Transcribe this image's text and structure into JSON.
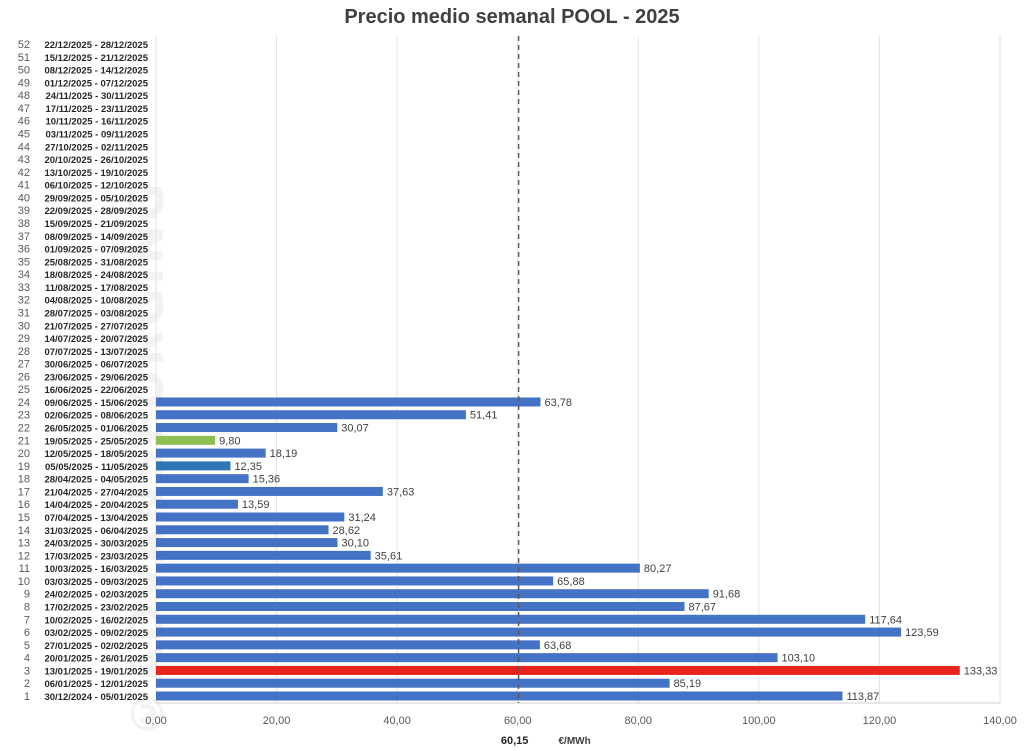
{
  "chart_data": {
    "type": "bar",
    "orientation": "horizontal",
    "title": "Precio medio semanal POOL - 2025",
    "unit_label": "€/MWh",
    "xlim": [
      0,
      140
    ],
    "x_ticks": [
      "0,00",
      "20,00",
      "40,00",
      "60,00",
      "80,00",
      "100,00",
      "120,00",
      "140,00"
    ],
    "x_tick_values": [
      0,
      20,
      40,
      60,
      80,
      100,
      120,
      140
    ],
    "grid": true,
    "average": {
      "value": 60.15,
      "label": "60,15",
      "style": "dashed"
    },
    "colors": {
      "default": "#4472c4",
      "max": "#e8231b",
      "min": "#8cc152",
      "week19": "#2e75b6",
      "average_line": "#595959"
    },
    "weeks": [
      {
        "n": "1",
        "range": "30/12/2024 - 05/01/2025",
        "value": 113.87,
        "label": "113,87",
        "color": "default"
      },
      {
        "n": "2",
        "range": "06/01/2025 - 12/01/2025",
        "value": 85.19,
        "label": "85,19",
        "color": "default"
      },
      {
        "n": "3",
        "range": "13/01/2025 - 19/01/2025",
        "value": 133.33,
        "label": "133,33",
        "color": "max"
      },
      {
        "n": "4",
        "range": "20/01/2025 - 26/01/2025",
        "value": 103.1,
        "label": "103,10",
        "color": "default"
      },
      {
        "n": "5",
        "range": "27/01/2025 - 02/02/2025",
        "value": 63.68,
        "label": "63,68",
        "color": "default"
      },
      {
        "n": "6",
        "range": "03/02/2025 - 09/02/2025",
        "value": 123.59,
        "label": "123,59",
        "color": "default"
      },
      {
        "n": "7",
        "range": "10/02/2025 - 16/02/2025",
        "value": 117.64,
        "label": "117,64",
        "color": "default"
      },
      {
        "n": "8",
        "range": "17/02/2025 - 23/02/2025",
        "value": 87.67,
        "label": "87,67",
        "color": "default"
      },
      {
        "n": "9",
        "range": "24/02/2025 - 02/03/2025",
        "value": 91.68,
        "label": "91,68",
        "color": "default"
      },
      {
        "n": "10",
        "range": "03/03/2025 - 09/03/2025",
        "value": 65.88,
        "label": "65,88",
        "color": "default"
      },
      {
        "n": "11",
        "range": "10/03/2025 - 16/03/2025",
        "value": 80.27,
        "label": "80,27",
        "color": "default"
      },
      {
        "n": "12",
        "range": "17/03/2025 - 23/03/2025",
        "value": 35.61,
        "label": "35,61",
        "color": "default"
      },
      {
        "n": "13",
        "range": "24/03/2025 - 30/03/2025",
        "value": 30.1,
        "label": "30,10",
        "color": "default"
      },
      {
        "n": "14",
        "range": "31/03/2025 - 06/04/2025",
        "value": 28.62,
        "label": "28,62",
        "color": "default"
      },
      {
        "n": "15",
        "range": "07/04/2025 - 13/04/2025",
        "value": 31.24,
        "label": "31,24",
        "color": "default"
      },
      {
        "n": "16",
        "range": "14/04/2025 - 20/04/2025",
        "value": 13.59,
        "label": "13,59",
        "color": "default"
      },
      {
        "n": "17",
        "range": "21/04/2025 - 27/04/2025",
        "value": 37.63,
        "label": "37,63",
        "color": "default"
      },
      {
        "n": "18",
        "range": "28/04/2025 - 04/05/2025",
        "value": 15.36,
        "label": "15,36",
        "color": "default"
      },
      {
        "n": "19",
        "range": "05/05/2025 - 11/05/2025",
        "value": 12.35,
        "label": "12,35",
        "color": "week19"
      },
      {
        "n": "20",
        "range": "12/05/2025 - 18/05/2025",
        "value": 18.19,
        "label": "18,19",
        "color": "default"
      },
      {
        "n": "21",
        "range": "19/05/2025 - 25/05/2025",
        "value": 9.8,
        "label": "9,80",
        "color": "min"
      },
      {
        "n": "22",
        "range": "26/05/2025 - 01/06/2025",
        "value": 30.07,
        "label": "30,07",
        "color": "default"
      },
      {
        "n": "23",
        "range": "02/06/2025 - 08/06/2025",
        "value": 51.41,
        "label": "51,41",
        "color": "default"
      },
      {
        "n": "24",
        "range": "09/06/2025 - 15/06/2025",
        "value": 63.78,
        "label": "63,78",
        "color": "default"
      },
      {
        "n": "25",
        "range": "16/06/2025 - 22/06/2025",
        "value": null,
        "label": "",
        "color": "default"
      },
      {
        "n": "26",
        "range": "23/06/2025 - 29/06/2025",
        "value": null,
        "label": "",
        "color": "default"
      },
      {
        "n": "27",
        "range": "30/06/2025 - 06/07/2025",
        "value": null,
        "label": "",
        "color": "default"
      },
      {
        "n": "28",
        "range": "07/07/2025 - 13/07/2025",
        "value": null,
        "label": "",
        "color": "default"
      },
      {
        "n": "29",
        "range": "14/07/2025 - 20/07/2025",
        "value": null,
        "label": "",
        "color": "default"
      },
      {
        "n": "30",
        "range": "21/07/2025 - 27/07/2025",
        "value": null,
        "label": "",
        "color": "default"
      },
      {
        "n": "31",
        "range": "28/07/2025 - 03/08/2025",
        "value": null,
        "label": "",
        "color": "default"
      },
      {
        "n": "32",
        "range": "04/08/2025 - 10/08/2025",
        "value": null,
        "label": "",
        "color": "default"
      },
      {
        "n": "33",
        "range": "11/08/2025 - 17/08/2025",
        "value": null,
        "label": "",
        "color": "default"
      },
      {
        "n": "34",
        "range": "18/08/2025 - 24/08/2025",
        "value": null,
        "label": "",
        "color": "default"
      },
      {
        "n": "35",
        "range": "25/08/2025 - 31/08/2025",
        "value": null,
        "label": "",
        "color": "default"
      },
      {
        "n": "36",
        "range": "01/09/2025 - 07/09/2025",
        "value": null,
        "label": "",
        "color": "default"
      },
      {
        "n": "37",
        "range": "08/09/2025 - 14/09/2025",
        "value": null,
        "label": "",
        "color": "default"
      },
      {
        "n": "38",
        "range": "15/09/2025 - 21/09/2025",
        "value": null,
        "label": "",
        "color": "default"
      },
      {
        "n": "39",
        "range": "22/09/2025 - 28/09/2025",
        "value": null,
        "label": "",
        "color": "default"
      },
      {
        "n": "40",
        "range": "29/09/2025 - 05/10/2025",
        "value": null,
        "label": "",
        "color": "default"
      },
      {
        "n": "41",
        "range": "06/10/2025 - 12/10/2025",
        "value": null,
        "label": "",
        "color": "default"
      },
      {
        "n": "42",
        "range": "13/10/2025 - 19/10/2025",
        "value": null,
        "label": "",
        "color": "default"
      },
      {
        "n": "43",
        "range": "20/10/2025 - 26/10/2025",
        "value": null,
        "label": "",
        "color": "default"
      },
      {
        "n": "44",
        "range": "27/10/2025 - 02/11/2025",
        "value": null,
        "label": "",
        "color": "default"
      },
      {
        "n": "45",
        "range": "03/11/2025 - 09/11/2025",
        "value": null,
        "label": "",
        "color": "default"
      },
      {
        "n": "46",
        "range": "10/11/2025 - 16/11/2025",
        "value": null,
        "label": "",
        "color": "default"
      },
      {
        "n": "47",
        "range": "17/11/2025 - 23/11/2025",
        "value": null,
        "label": "",
        "color": "default"
      },
      {
        "n": "48",
        "range": "24/11/2025 - 30/11/2025",
        "value": null,
        "label": "",
        "color": "default"
      },
      {
        "n": "49",
        "range": "01/12/2025 - 07/12/2025",
        "value": null,
        "label": "",
        "color": "default"
      },
      {
        "n": "50",
        "range": "08/12/2025 - 14/12/2025",
        "value": null,
        "label": "",
        "color": "default"
      },
      {
        "n": "51",
        "range": "15/12/2025 - 21/12/2025",
        "value": null,
        "label": "",
        "color": "default"
      },
      {
        "n": "52",
        "range": "22/12/2025 - 28/12/2025",
        "value": null,
        "label": "",
        "color": "default"
      }
    ]
  }
}
